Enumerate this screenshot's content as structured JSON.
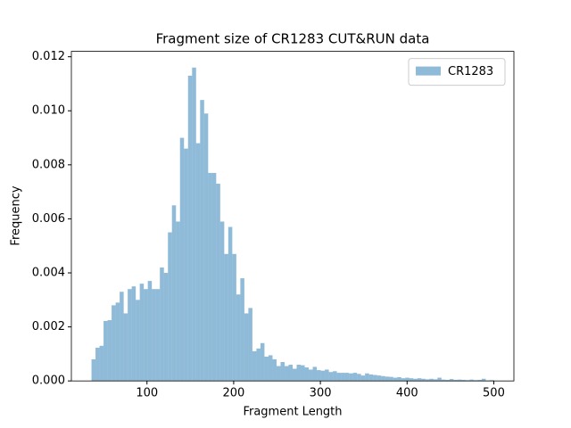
{
  "chart_data": {
    "type": "histogram",
    "title": "Fragment size of CR1283 CUT&RUN data",
    "x_label": "Fragment Length",
    "y_label": "Frequency",
    "bins": [
      36,
      40.64,
      45.28,
      49.92,
      54.56,
      59.2,
      63.84,
      68.48,
      73.12,
      77.76,
      82.4,
      87.04,
      91.68,
      96.32,
      100.96,
      105.6,
      110.24,
      114.88,
      119.52,
      124.16,
      128.8,
      133.44,
      138.08,
      142.72,
      147.36,
      152,
      156.64,
      161.28,
      165.92,
      170.56,
      175.2,
      179.84,
      184.48,
      189.12,
      193.76,
      198.4,
      203.04,
      207.68,
      212.32,
      216.96,
      221.6,
      226.24,
      230.88,
      235.52,
      240.16,
      244.8,
      249.44,
      254.08,
      258.72,
      263.36,
      268,
      272.64,
      277.28,
      281.92,
      286.56,
      291.2,
      295.84,
      300.48,
      305.12,
      309.76,
      314.4,
      319.04,
      323.68,
      328.32,
      332.96,
      337.6,
      342.24,
      346.88,
      351.52,
      356.16,
      360.8,
      365.44,
      370.08,
      374.72,
      379.36,
      384,
      388.64,
      393.28,
      397.92,
      402.56,
      407.2,
      411.84,
      416.48,
      421.12,
      425.76,
      430.4,
      435.04,
      439.68,
      444.32,
      448.96,
      453.6,
      458.24,
      462.88,
      467.52,
      472.16,
      476.8,
      481.44,
      486.08,
      490.72,
      495.36,
      500
    ],
    "series": [
      {
        "name": "CR1283",
        "color": "#1f77b4",
        "opacity": 0.5,
        "values": [
          0.0008,
          0.00123,
          0.0013,
          0.00222,
          0.00225,
          0.0028,
          0.0029,
          0.0033,
          0.0025,
          0.0034,
          0.0035,
          0.003,
          0.0036,
          0.0034,
          0.0037,
          0.0034,
          0.0034,
          0.0042,
          0.004,
          0.0055,
          0.0065,
          0.0059,
          0.009,
          0.0086,
          0.0113,
          0.0116,
          0.0088,
          0.0104,
          0.0099,
          0.0077,
          0.0077,
          0.0073,
          0.0059,
          0.0047,
          0.0057,
          0.0047,
          0.0032,
          0.0038,
          0.0025,
          0.0027,
          0.0011,
          0.0012,
          0.0014,
          0.0009,
          0.00095,
          0.0008,
          0.00055,
          0.0007,
          0.00055,
          0.0006,
          0.00045,
          0.0006,
          0.00058,
          0.0005,
          0.00042,
          0.00052,
          0.0004,
          0.00038,
          0.00042,
          0.00033,
          0.00036,
          0.0003,
          0.0003,
          0.0003,
          0.00028,
          0.0003,
          0.00026,
          0.0002,
          0.00028,
          0.00024,
          0.00022,
          0.0002,
          0.00018,
          0.00016,
          0.00015,
          0.00012,
          0.00014,
          0.0001,
          0.00012,
          0.0001,
          8e-05,
          0.0001,
          8e-05,
          6e-05,
          8e-05,
          6e-05,
          0.00012,
          5e-05,
          4e-05,
          7e-05,
          4e-05,
          5e-05,
          4e-05,
          3e-05,
          5e-05,
          3e-05,
          4e-05,
          8e-05,
          2e-05,
          3e-05
        ]
      }
    ],
    "xlim": [
      12.8,
      523.2
    ],
    "xticks": [
      100,
      200,
      300,
      400,
      500
    ],
    "ylim": [
      0,
      0.0122
    ],
    "yticks": [
      {
        "value": 0,
        "label": "0.000"
      },
      {
        "value": 0.002,
        "label": "0.002"
      },
      {
        "value": 0.004,
        "label": "0.004"
      },
      {
        "value": 0.006,
        "label": "0.006"
      },
      {
        "value": 0.008,
        "label": "0.008"
      },
      {
        "value": 0.01,
        "label": "0.010"
      },
      {
        "value": 0.012,
        "label": "0.012"
      }
    ],
    "legend": "upper right"
  }
}
